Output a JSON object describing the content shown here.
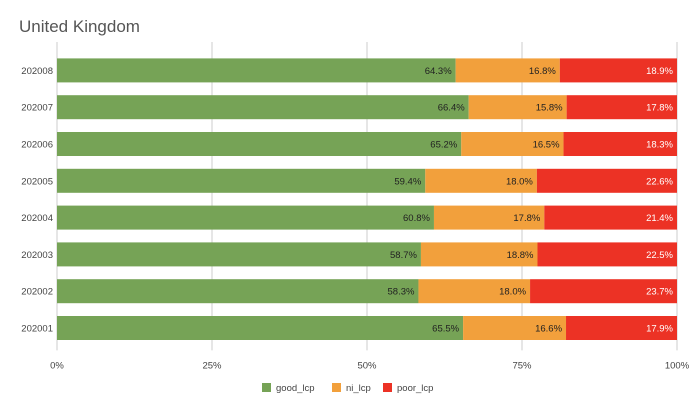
{
  "chart_data": {
    "type": "bar",
    "orientation": "horizontal",
    "stacked": true,
    "title": "United Kingdom",
    "categories": [
      "202008",
      "202007",
      "202006",
      "202005",
      "202004",
      "202003",
      "202002",
      "202001"
    ],
    "series": [
      {
        "name": "good_lcp",
        "color": "#76a356",
        "values": [
          64.3,
          66.4,
          65.2,
          59.4,
          60.8,
          58.7,
          58.3,
          65.5
        ],
        "labels": [
          "64.3%",
          "66.4%",
          "65.2%",
          "59.4%",
          "60.8%",
          "58.7%",
          "58.3%",
          "65.5%"
        ]
      },
      {
        "name": "ni_lcp",
        "color": "#f2a03c",
        "values": [
          16.8,
          15.8,
          16.5,
          18.0,
          17.8,
          18.8,
          18.0,
          16.6
        ],
        "labels": [
          "16.8%",
          "15.8%",
          "16.5%",
          "18.0%",
          "17.8%",
          "18.8%",
          "18.0%",
          "16.6%"
        ]
      },
      {
        "name": "poor_lcp",
        "color": "#ec3225",
        "values": [
          18.9,
          17.8,
          18.3,
          22.6,
          21.4,
          22.5,
          23.7,
          17.9
        ],
        "labels": [
          "18.9%",
          "17.8%",
          "18.3%",
          "22.6%",
          "21.4%",
          "22.5%",
          "23.7%",
          "17.9%"
        ]
      }
    ],
    "x_ticks": [
      0,
      25,
      50,
      75,
      100
    ],
    "x_tick_labels": [
      "0%",
      "25%",
      "50%",
      "75%",
      "100%"
    ],
    "xlim": [
      0,
      100
    ],
    "xlabel": "",
    "ylabel": "",
    "grid": true,
    "legend": "bottom-center",
    "label_text_color": "#222222",
    "label_text_color_dark": "#ffffff",
    "axis_text_color": "#444444",
    "grid_color": "#cccccc"
  }
}
